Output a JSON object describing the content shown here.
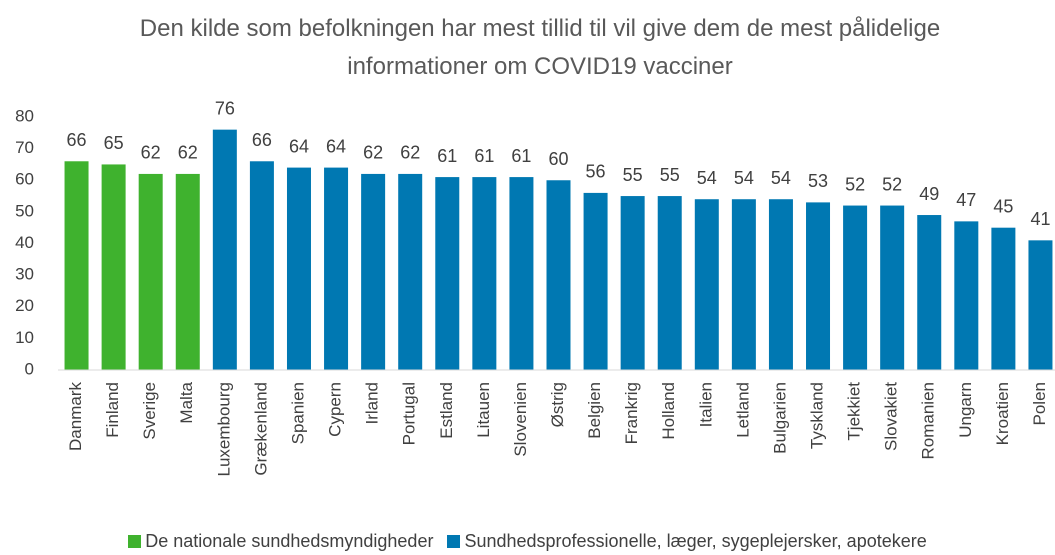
{
  "chart_data": {
    "type": "bar",
    "title": "Den kilde som befolkningen har mest tillid til vil give dem de mest pålidelige informationer om COVID19 vacciner",
    "categories": [
      "Danmark",
      "Finland",
      "Sverige",
      "Malta",
      "Luxembourg",
      "Grækenland",
      "Spanien",
      "Cypern",
      "Irland",
      "Portugal",
      "Estland",
      "Litauen",
      "Slovenien",
      "Østrig",
      "Belgien",
      "Frankrig",
      "Holland",
      "Italien",
      "Letland",
      "Bulgarien",
      "Tyskland",
      "Tjekkiet",
      "Slovakiet",
      "Romanien",
      "Ungarn",
      "Kroatien",
      "Polen"
    ],
    "series": [
      {
        "name": "De nationale sundhedsmyndigheder",
        "color": "#3fb22e",
        "values": [
          66,
          65,
          62,
          62,
          null,
          null,
          null,
          null,
          null,
          null,
          null,
          null,
          null,
          null,
          null,
          null,
          null,
          null,
          null,
          null,
          null,
          null,
          null,
          null,
          null,
          null,
          null
        ]
      },
      {
        "name": "Sundhedsprofessionelle, læger, sygeplejersker, apotekere",
        "color": "#0078b2",
        "values": [
          null,
          null,
          null,
          null,
          76,
          66,
          64,
          64,
          62,
          62,
          61,
          61,
          61,
          60,
          56,
          55,
          55,
          54,
          54,
          54,
          53,
          52,
          52,
          49,
          47,
          45,
          41
        ]
      }
    ],
    "ylim": [
      0,
      80
    ],
    "yticks": [
      0,
      10,
      20,
      30,
      40,
      50,
      60,
      70,
      80
    ],
    "grid": false,
    "legend": "bottom"
  }
}
